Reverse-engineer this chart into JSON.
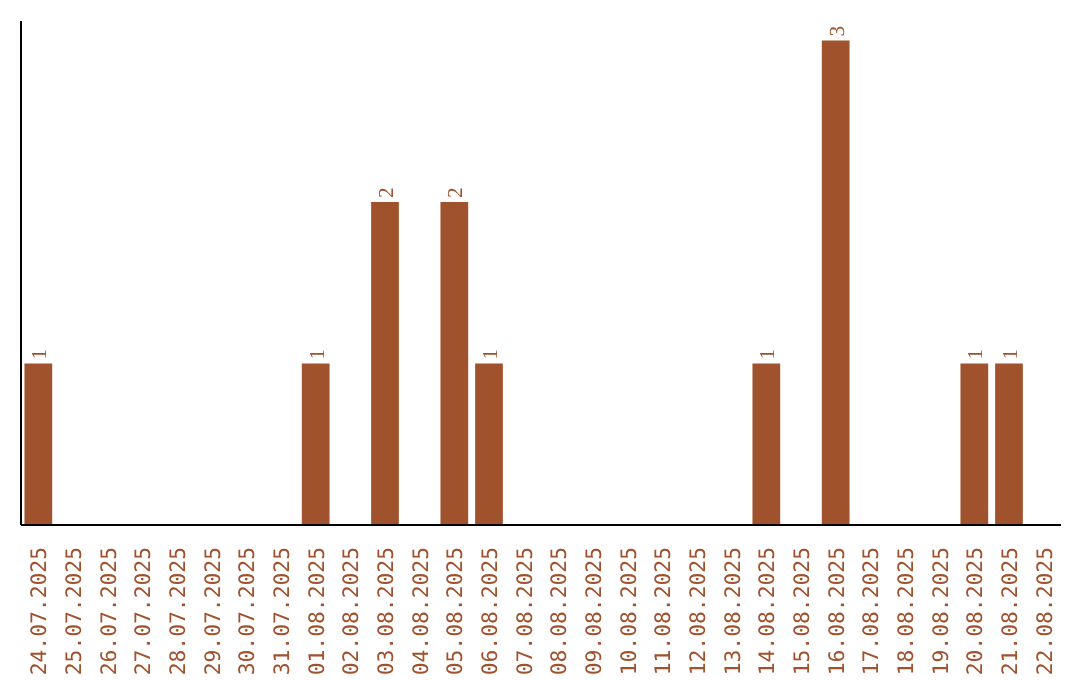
{
  "chart_data": {
    "type": "bar",
    "color": "#a0522d",
    "categories": [
      "24.07.2025",
      "25.07.2025",
      "26.07.2025",
      "27.07.2025",
      "28.07.2025",
      "29.07.2025",
      "30.07.2025",
      "31.07.2025",
      "01.08.2025",
      "02.08.2025",
      "03.08.2025",
      "04.08.2025",
      "05.08.2025",
      "06.08.2025",
      "07.08.2025",
      "08.08.2025",
      "09.08.2025",
      "10.08.2025",
      "11.08.2025",
      "12.08.2025",
      "13.08.2025",
      "14.08.2025",
      "15.08.2025",
      "16.08.2025",
      "17.08.2025",
      "18.08.2025",
      "19.08.2025",
      "20.08.2025",
      "21.08.2025",
      "22.08.2025"
    ],
    "values": [
      1,
      0,
      0,
      0,
      0,
      0,
      0,
      0,
      1,
      0,
      2,
      0,
      2,
      1,
      0,
      0,
      0,
      0,
      0,
      0,
      0,
      1,
      0,
      3,
      0,
      0,
      0,
      1,
      1,
      0
    ],
    "value_labels": [
      "1",
      null,
      null,
      null,
      null,
      null,
      null,
      null,
      "1",
      null,
      "2",
      null,
      "2",
      "1",
      null,
      null,
      null,
      null,
      null,
      null,
      null,
      "1",
      null,
      "3",
      null,
      null,
      null,
      "1",
      "1",
      null
    ],
    "grid": false,
    "tick_labels": "x"
  }
}
